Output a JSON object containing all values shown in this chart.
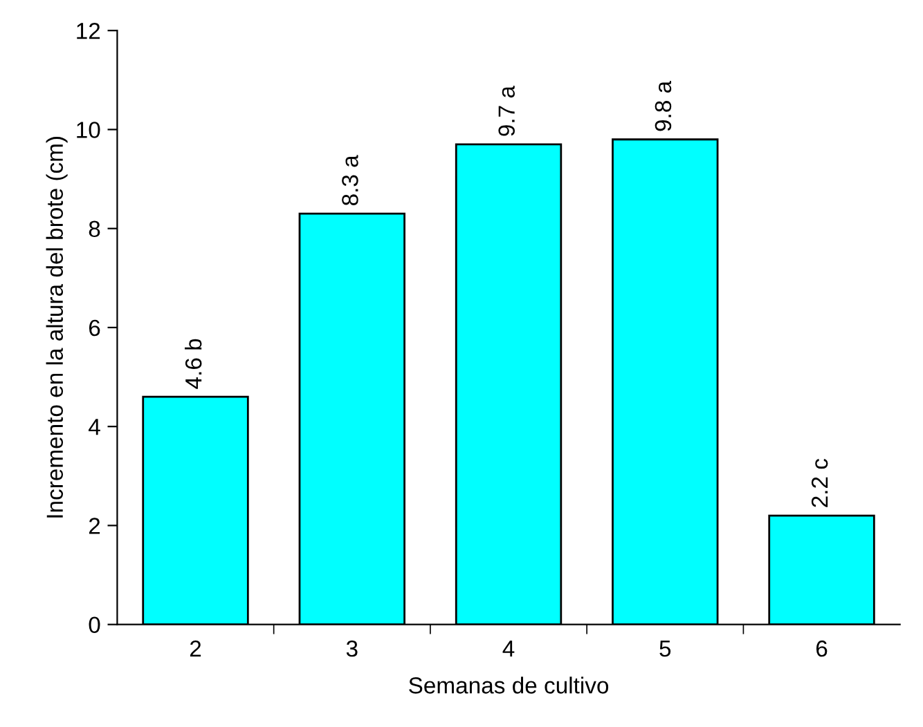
{
  "chart_data": {
    "type": "bar",
    "xlabel": "Semanas de cultivo",
    "ylabel": "Incremento en la altura del brote (cm)",
    "categories": [
      "2",
      "3",
      "4",
      "5",
      "6"
    ],
    "values": [
      4.6,
      8.3,
      9.7,
      9.8,
      2.2
    ],
    "value_labels": [
      "4.6 b",
      "8.3 a",
      "9.7 a",
      "9.8 a",
      "2.2 c"
    ],
    "color": "#00ffff",
    "ylim": [
      0,
      12
    ],
    "yticks": [
      0,
      2,
      4,
      6,
      8,
      10,
      12
    ],
    "grid": false,
    "legend": false
  }
}
